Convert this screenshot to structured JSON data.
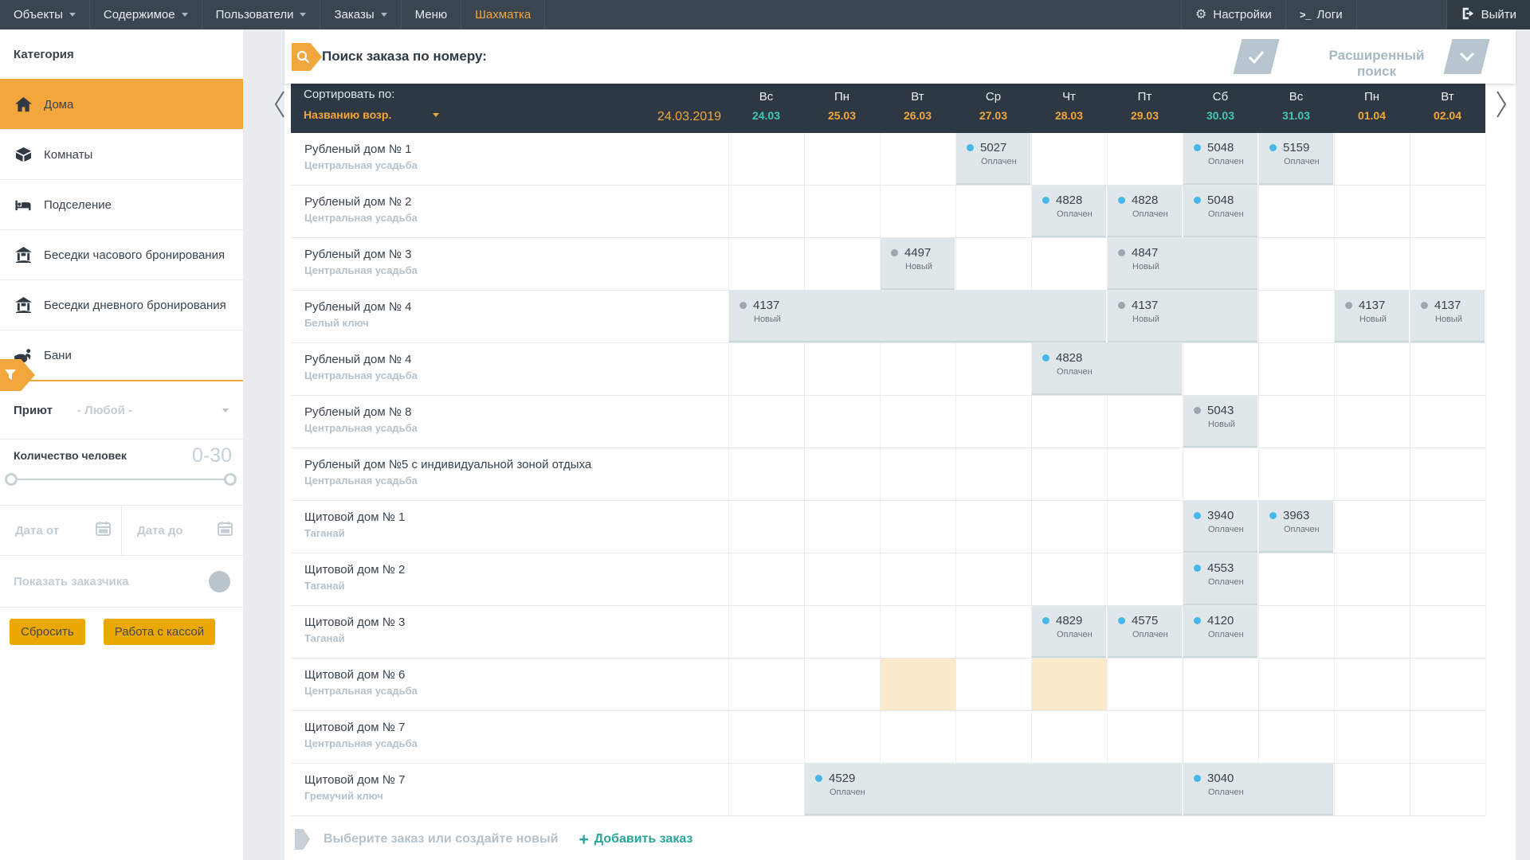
{
  "topnav": {
    "items": [
      {
        "label": "Объекты",
        "caret": true
      },
      {
        "label": "Содержимое",
        "caret": true
      },
      {
        "label": "Пользователи",
        "caret": true
      },
      {
        "label": "Заказы",
        "caret": true
      },
      {
        "label": "Меню",
        "caret": false
      },
      {
        "label": "Шахматка",
        "caret": false,
        "active": true
      }
    ],
    "right": [
      {
        "label": "Настройки",
        "icon": "gear-icon"
      },
      {
        "label": "Логи",
        "icon": "terminal-icon"
      },
      {
        "label": "Выйти",
        "icon": "logout-icon",
        "exit": true
      }
    ]
  },
  "sidebar": {
    "category_header": "Категория",
    "items": [
      {
        "label": "Дома",
        "icon": "house-icon",
        "active": true
      },
      {
        "label": "Комнаты",
        "icon": "cube-icon"
      },
      {
        "label": "Подселение",
        "icon": "bed-icon"
      },
      {
        "label": "Беседки часового бронирования",
        "icon": "gazebo-icon"
      },
      {
        "label": "Беседки дневного бронирования",
        "icon": "gazebo-icon"
      },
      {
        "label": "Бани",
        "icon": "sauna-icon"
      }
    ],
    "filters": {
      "shelter_label": "Приют",
      "shelter_value": "- Любой -",
      "people_label": "Количество человек",
      "people_range": "0-30",
      "date_from_placeholder": "Дата от",
      "date_to_placeholder": "Дата до",
      "show_customer_label": "Показать заказчика",
      "reset_button": "Сбросить",
      "cashdesk_button": "Работа с кассой"
    }
  },
  "search": {
    "title": "Поиск заказа по номеру:",
    "advanced_label": "Расширенный поиск"
  },
  "grid": {
    "sort_label": "Сортировать по:",
    "sort_value": "Названию возр.",
    "current_date": "24.03.2019",
    "columns": [
      {
        "day": "Вс",
        "date": "24.03",
        "weekend": true
      },
      {
        "day": "Пн",
        "date": "25.03",
        "weekend": false
      },
      {
        "day": "Вт",
        "date": "26.03",
        "weekend": false
      },
      {
        "day": "Ср",
        "date": "27.03",
        "weekend": false
      },
      {
        "day": "Чт",
        "date": "28.03",
        "weekend": false
      },
      {
        "day": "Пт",
        "date": "29.03",
        "weekend": false
      },
      {
        "day": "Сб",
        "date": "30.03",
        "weekend": true
      },
      {
        "day": "Вс",
        "date": "31.03",
        "weekend": true
      },
      {
        "day": "Пн",
        "date": "01.04",
        "weekend": false
      },
      {
        "day": "Вт",
        "date": "02.04",
        "weekend": false
      }
    ],
    "statuses": {
      "paid": "Оплачен",
      "new": "Новый"
    },
    "rows": [
      {
        "name": "Рубленый дом № 1",
        "location": "Центральная усадьба",
        "bookings": [
          {
            "col": 3,
            "span": 1,
            "id": "5027",
            "status": "paid"
          },
          {
            "col": 6,
            "span": 1,
            "id": "5048",
            "status": "paid"
          },
          {
            "col": 7,
            "span": 1,
            "id": "5159",
            "status": "paid"
          }
        ]
      },
      {
        "name": "Рубленый дом № 2",
        "location": "Центральная усадьба",
        "bookings": [
          {
            "col": 4,
            "span": 1,
            "id": "4828",
            "status": "paid"
          },
          {
            "col": 5,
            "span": 1,
            "id": "4828",
            "status": "paid"
          },
          {
            "col": 6,
            "span": 1,
            "id": "5048",
            "status": "paid"
          }
        ]
      },
      {
        "name": "Рубленый дом № 3",
        "location": "Центральная усадьба",
        "bookings": [
          {
            "col": 2,
            "span": 1,
            "id": "4497",
            "status": "new"
          },
          {
            "col": 5,
            "span": 2,
            "id": "4847",
            "status": "new"
          }
        ]
      },
      {
        "name": "Рубленый дом № 4",
        "location": "Белый ключ",
        "bookings": [
          {
            "col": 0,
            "span": 5,
            "id": "4137",
            "status": "new"
          },
          {
            "col": 5,
            "span": 2,
            "id": "4137",
            "status": "new"
          },
          {
            "col": 8,
            "span": 1,
            "id": "4137",
            "status": "new"
          },
          {
            "col": 9,
            "span": 1,
            "id": "4137",
            "status": "new"
          }
        ]
      },
      {
        "name": "Рубленый дом № 4",
        "location": "Центральная усадьба",
        "bookings": [
          {
            "col": 4,
            "span": 2,
            "id": "4828",
            "status": "paid"
          }
        ]
      },
      {
        "name": "Рубленый дом № 8",
        "location": "Центральная усадьба",
        "bookings": [
          {
            "col": 6,
            "span": 1,
            "id": "5043",
            "status": "new"
          }
        ]
      },
      {
        "name": "Рубленый дом №5 с индивидуальной зоной отдыха",
        "location": "Центральная усадьба",
        "bookings": []
      },
      {
        "name": "Щитовой дом № 1",
        "location": "Таганай",
        "bookings": [
          {
            "col": 6,
            "span": 1,
            "id": "3940",
            "status": "paid"
          },
          {
            "col": 7,
            "span": 1,
            "id": "3963",
            "status": "paid"
          }
        ]
      },
      {
        "name": "Щитовой дом № 2",
        "location": "Таганай",
        "bookings": [
          {
            "col": 6,
            "span": 1,
            "id": "4553",
            "status": "paid"
          }
        ]
      },
      {
        "name": "Щитовой дом № 3",
        "location": "Таганай",
        "bookings": [
          {
            "col": 4,
            "span": 1,
            "id": "4829",
            "status": "paid"
          },
          {
            "col": 5,
            "span": 1,
            "id": "4575",
            "status": "paid"
          },
          {
            "col": 6,
            "span": 1,
            "id": "4120",
            "status": "paid"
          }
        ]
      },
      {
        "name": "Щитовой дом № 6",
        "location": "Центральная усадьба",
        "bookings": [],
        "highlights": [
          2,
          4
        ]
      },
      {
        "name": "Щитовой дом № 7",
        "location": "Центральная усадьба",
        "bookings": []
      },
      {
        "name": "Щитовой дом № 7",
        "location": "Гремучий ключ",
        "bookings": [
          {
            "col": 1,
            "span": 5,
            "id": "4529",
            "status": "paid"
          },
          {
            "col": 6,
            "span": 2,
            "id": "3040",
            "status": "paid"
          }
        ]
      }
    ]
  },
  "footer": {
    "hint": "Выберите заказ или создайте новый",
    "add_plus": "+",
    "add_label": "Добавить заказ"
  },
  "colors": {
    "accent_orange": "#f0a73e",
    "button_yellow": "#eba800",
    "weekend_teal": "#45c7b8",
    "add_link_teal": "#27a598",
    "paid_dot_blue": "#46b7e8",
    "new_dot_gray": "#9ba7af",
    "booking_cell": "#dfe7ea",
    "highlight_cell": "#fceacd",
    "nav_dark": "#3a454f",
    "grid_head_dark": "#2d3842"
  }
}
